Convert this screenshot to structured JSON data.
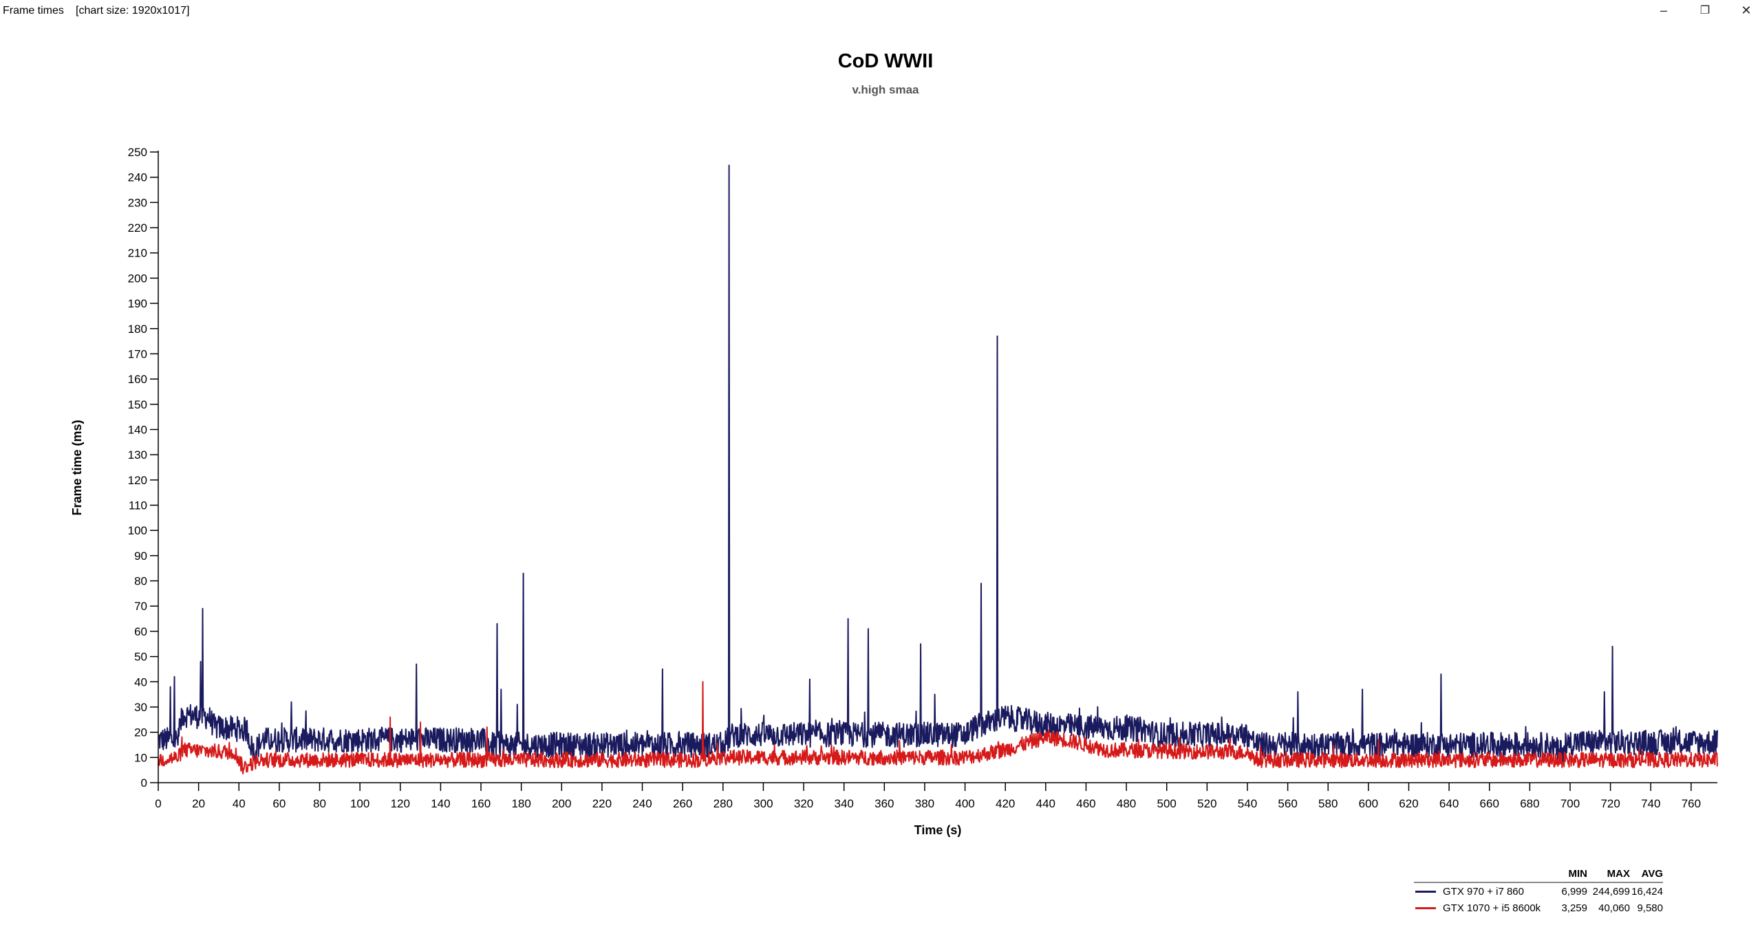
{
  "window": {
    "title": "Frame times",
    "chart_size": "[chart size: 1920x1017]",
    "controls": {
      "minimize": "–",
      "restore": "❐",
      "close": "✕"
    }
  },
  "chart_data": {
    "type": "line",
    "title": "CoD WWII",
    "subtitle": "v.high smaa",
    "xlabel": "Time (s)",
    "ylabel": "Frame time (ms)",
    "xlim": [
      0,
      773
    ],
    "ylim": [
      0,
      250
    ],
    "xticks": [
      0,
      20,
      40,
      60,
      80,
      100,
      120,
      140,
      160,
      180,
      200,
      220,
      240,
      260,
      280,
      300,
      320,
      340,
      360,
      380,
      400,
      420,
      440,
      460,
      480,
      500,
      520,
      540,
      560,
      580,
      600,
      620,
      640,
      660,
      680,
      700,
      720,
      740,
      760
    ],
    "yticks": [
      0,
      10,
      20,
      30,
      40,
      50,
      60,
      70,
      80,
      90,
      100,
      110,
      120,
      130,
      140,
      150,
      160,
      170,
      180,
      190,
      200,
      210,
      220,
      230,
      240,
      250
    ],
    "grid": false,
    "legend_position": "bottom-right",
    "legend_headers": {
      "min": "MIN",
      "max": "MAX",
      "avg": "AVG"
    },
    "series": [
      {
        "name": "GTX 970 + i7 860",
        "color": "#1a1a5e",
        "min": "6,999",
        "max": "244,699",
        "avg": "16,424",
        "noise": 5,
        "baseline": [
          [
            0,
            17
          ],
          [
            10,
            17
          ],
          [
            12,
            27
          ],
          [
            25,
            26
          ],
          [
            28,
            22
          ],
          [
            44,
            21
          ],
          [
            47,
            12
          ],
          [
            52,
            17
          ],
          [
            160,
            17
          ],
          [
            165,
            15
          ],
          [
            280,
            15
          ],
          [
            285,
            19
          ],
          [
            400,
            19
          ],
          [
            405,
            22
          ],
          [
            420,
            26
          ],
          [
            440,
            23
          ],
          [
            460,
            22
          ],
          [
            490,
            21
          ],
          [
            495,
            19
          ],
          [
            540,
            19
          ],
          [
            545,
            15
          ],
          [
            690,
            15
          ],
          [
            695,
            12
          ],
          [
            700,
            16
          ],
          [
            773,
            16
          ]
        ],
        "spikes": [
          [
            6,
            38
          ],
          [
            8,
            42
          ],
          [
            21,
            48
          ],
          [
            22,
            69
          ],
          [
            66,
            32
          ],
          [
            128,
            47
          ],
          [
            168,
            63
          ],
          [
            170,
            37
          ],
          [
            178,
            31
          ],
          [
            181,
            83
          ],
          [
            250,
            45
          ],
          [
            283,
            244.7
          ],
          [
            323,
            41
          ],
          [
            342,
            65
          ],
          [
            352,
            61
          ],
          [
            378,
            55
          ],
          [
            385,
            35
          ],
          [
            408,
            79
          ],
          [
            416,
            177
          ],
          [
            565,
            36
          ],
          [
            597,
            37
          ],
          [
            636,
            43
          ],
          [
            717,
            36
          ],
          [
            721,
            54
          ]
        ]
      },
      {
        "name": "GTX 1070 + i5 8600k",
        "color": "#d61a1a",
        "min": "3,259",
        "max": "40,060",
        "avg": "9,580",
        "noise": 3,
        "baseline": [
          [
            0,
            9
          ],
          [
            10,
            10
          ],
          [
            12,
            13
          ],
          [
            38,
            12
          ],
          [
            42,
            6
          ],
          [
            50,
            9
          ],
          [
            270,
            9
          ],
          [
            275,
            10
          ],
          [
            400,
            10
          ],
          [
            420,
            13
          ],
          [
            440,
            18
          ],
          [
            450,
            17
          ],
          [
            470,
            13
          ],
          [
            540,
            12
          ],
          [
            545,
            9
          ],
          [
            773,
            9
          ]
        ],
        "spikes": [
          [
            115,
            26
          ],
          [
            130,
            24
          ],
          [
            163,
            22
          ],
          [
            270,
            40
          ],
          [
            605,
            17
          ]
        ]
      }
    ]
  }
}
